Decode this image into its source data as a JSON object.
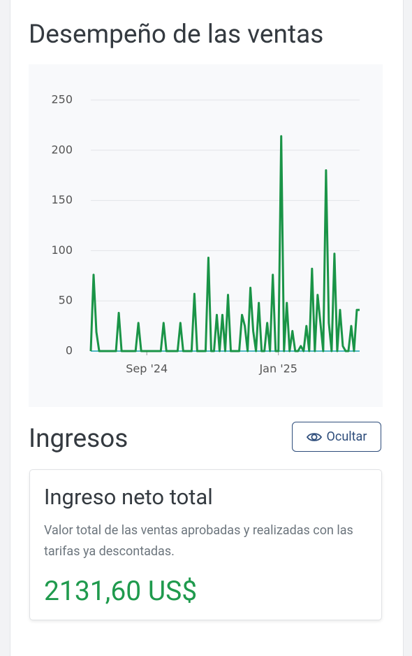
{
  "header": {
    "title": "Desempeño de las ventas"
  },
  "chart_data": {
    "type": "line",
    "color": "#1a9447",
    "grid": true,
    "ylim": [
      0,
      250
    ],
    "yticks": [
      0,
      50,
      100,
      150,
      200,
      250
    ],
    "categories": [
      null,
      null,
      null,
      null,
      null,
      null,
      null,
      null,
      null,
      null,
      null,
      null,
      null,
      null,
      null,
      null,
      null,
      null,
      null,
      null,
      "Sep '24",
      null,
      null,
      null,
      null,
      null,
      null,
      null,
      null,
      null,
      null,
      null,
      null,
      null,
      null,
      null,
      null,
      null,
      null,
      null,
      null,
      null,
      null,
      null,
      null,
      null,
      null,
      null,
      null,
      null,
      null,
      null,
      null,
      null,
      null,
      null,
      null,
      null,
      null,
      null,
      null,
      null,
      null,
      null,
      null,
      null,
      null,
      "Jan '25",
      null,
      null,
      null,
      null,
      null,
      null,
      null,
      null,
      null,
      null,
      null,
      null,
      null,
      null,
      null,
      null,
      null,
      null,
      null,
      null,
      null,
      null,
      null,
      null,
      null,
      null,
      null,
      null,
      null
    ],
    "values": [
      0,
      76,
      19,
      0,
      0,
      0,
      0,
      0,
      0,
      0,
      38,
      0,
      0,
      0,
      0,
      0,
      0,
      28,
      0,
      0,
      0,
      0,
      0,
      0,
      0,
      0,
      28,
      0,
      0,
      0,
      0,
      0,
      28,
      0,
      0,
      0,
      0,
      57,
      0,
      0,
      0,
      0,
      93,
      0,
      0,
      36,
      0,
      36,
      0,
      56,
      0,
      0,
      0,
      0,
      36,
      25,
      0,
      63,
      20,
      0,
      48,
      0,
      0,
      28,
      0,
      76,
      0,
      0,
      214,
      0,
      48,
      0,
      20,
      0,
      0,
      5,
      0,
      25,
      0,
      82,
      0,
      56,
      28,
      0,
      180,
      28,
      0,
      97,
      0,
      41,
      5,
      0,
      0,
      25,
      0,
      41,
      41
    ]
  },
  "revenue": {
    "title": "Ingresos",
    "button": "Ocultar"
  },
  "card": {
    "title": "Ingreso neto total",
    "description": "Valor total de las ventas aprobadas y realizadas con las tarifas ya descontadas.",
    "amount": "2131,60 US$"
  }
}
